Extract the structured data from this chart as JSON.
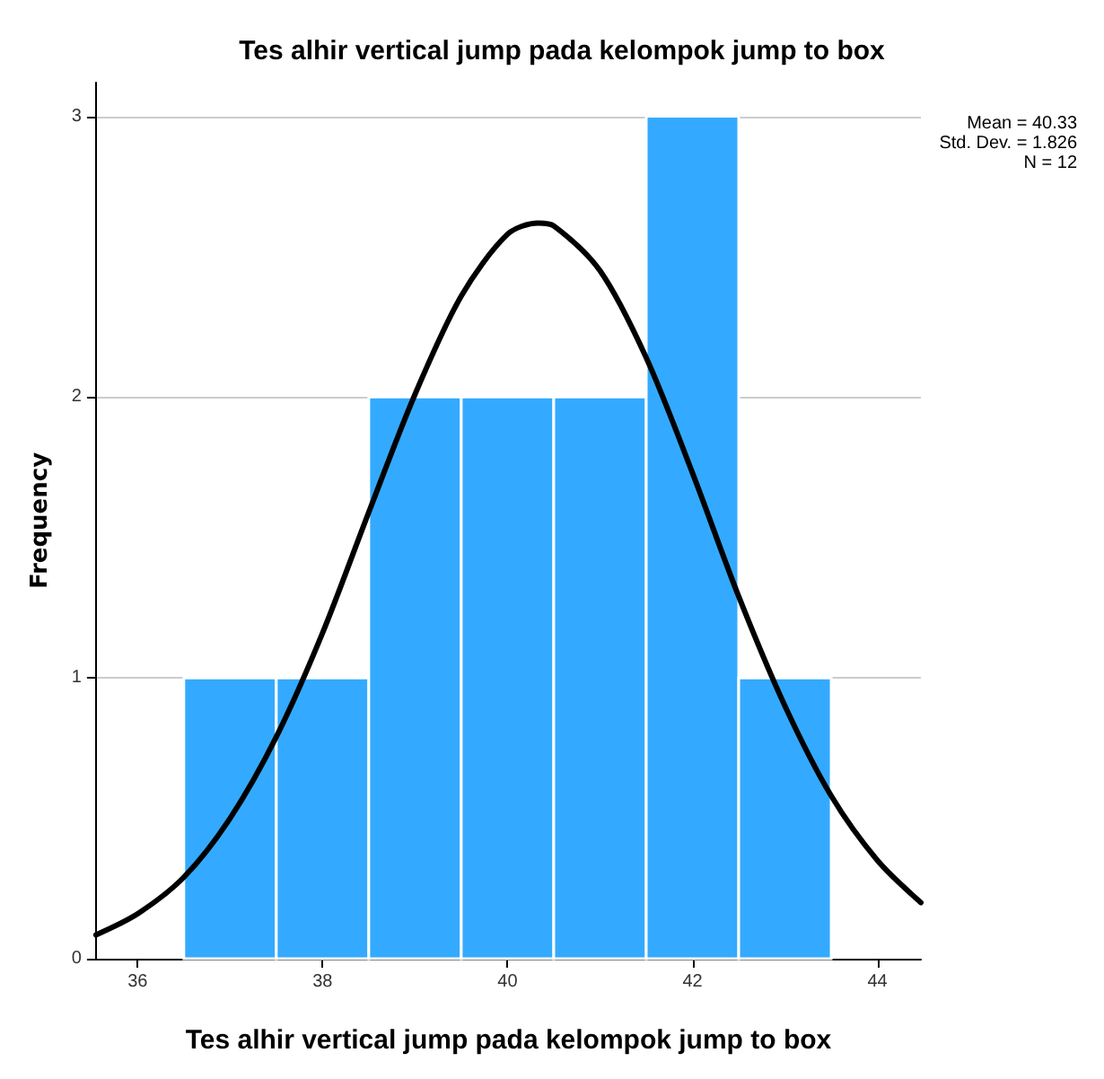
{
  "chart_data": {
    "type": "histogram",
    "title": "Tes alhir vertical jump pada kelompok jump to box",
    "xlabel": "Tes alhir vertical jump pada kelompok jump to box",
    "ylabel": "Frequency",
    "bins": [
      36.5,
      37.5,
      38.5,
      39.5,
      40.5,
      41.5,
      42.5,
      43.5
    ],
    "values": [
      1,
      1,
      2,
      2,
      2,
      3,
      1
    ],
    "color": "#33aaff",
    "series": [
      {
        "type": "line",
        "color": "#000000",
        "x": [
          35.55,
          36,
          36.5,
          37,
          37.5,
          38,
          38.5,
          39,
          39.5,
          40,
          40.33,
          40.5,
          41,
          41.5,
          42,
          42.5,
          43,
          43.5,
          44,
          44.47
        ],
        "values": [
          0.085,
          0.16,
          0.29,
          0.5,
          0.79,
          1.16,
          1.59,
          2.01,
          2.36,
          2.58,
          2.62,
          2.61,
          2.45,
          2.14,
          1.73,
          1.29,
          0.9,
          0.58,
          0.35,
          0.2
        ]
      }
    ],
    "xlim": [
      35.55,
      44.47
    ],
    "xticks": [
      36,
      38,
      40,
      42,
      44
    ],
    "ylim": [
      0,
      3.12
    ],
    "yticks": [
      0,
      1,
      2,
      3
    ],
    "grid": "y",
    "annotations": [
      "Mean = 40.33",
      "Std. Dev. = 1.826",
      "N = 12"
    ]
  }
}
